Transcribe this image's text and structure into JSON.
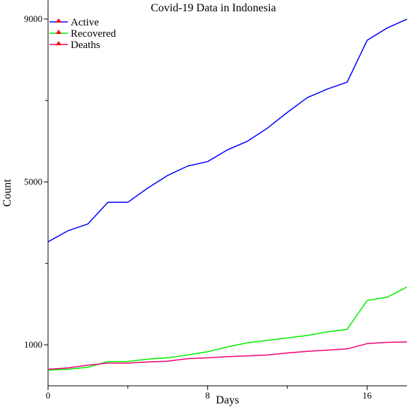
{
  "chart_data": {
    "type": "line",
    "title": "Covid-19 Data in Indonesia",
    "xlabel": "Days",
    "ylabel": "Count",
    "xlim": [
      0,
      18
    ],
    "ylim": [
      300,
      9000
    ],
    "x_ticks": [
      0,
      8,
      16
    ],
    "x_minor_ticks": [
      4,
      12
    ],
    "y_ticks": [
      1000,
      5000,
      9000
    ],
    "y_minor_ticks": [
      3000,
      7000
    ],
    "grid": false,
    "legend_position": "top-left",
    "legend_marker_color": "#ff0000",
    "x": [
      0,
      1,
      2,
      3,
      4,
      5,
      6,
      7,
      8,
      9,
      10,
      11,
      12,
      13,
      14,
      15,
      16,
      17,
      18
    ],
    "series": [
      {
        "name": "Active",
        "color": "#0000ff",
        "values": [
          3530,
          3800,
          3970,
          4500,
          4500,
          4850,
          5160,
          5390,
          5500,
          5790,
          6000,
          6320,
          6710,
          7070,
          7280,
          7450,
          8480,
          8780,
          9000
        ]
      },
      {
        "name": "Recovered",
        "color": "#00ee00",
        "values": [
          380,
          400,
          450,
          590,
          590,
          650,
          680,
          750,
          830,
          950,
          1050,
          1110,
          1170,
          1230,
          1320,
          1380,
          2090,
          2170,
          2420
        ]
      },
      {
        "name": "Deaths",
        "color": "#ee0077",
        "values": [
          400,
          430,
          500,
          550,
          550,
          580,
          600,
          660,
          680,
          710,
          730,
          750,
          800,
          840,
          870,
          900,
          1030,
          1060,
          1070
        ]
      }
    ]
  }
}
